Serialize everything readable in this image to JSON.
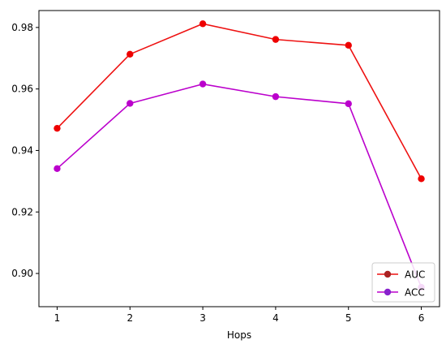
{
  "chart_data": {
    "type": "line",
    "title": "",
    "xlabel": "Hops",
    "ylabel": "",
    "x": [
      1,
      2,
      3,
      4,
      5,
      6
    ],
    "xticks": [
      "1",
      "2",
      "3",
      "4",
      "5",
      "6"
    ],
    "xlim": [
      0.75,
      6.25
    ],
    "ylim": [
      0.8892,
      0.9855
    ],
    "yticks": [
      "0.90",
      "0.92",
      "0.94",
      "0.96",
      "0.98"
    ],
    "ytick_values": [
      0.9,
      0.92,
      0.94,
      0.96,
      0.98
    ],
    "grid": false,
    "legend_position": "lower-right",
    "series": [
      {
        "name": "AUC",
        "line_color": "#ee1111",
        "marker_color": "#ee0000",
        "values": [
          0.9472,
          0.9713,
          0.9812,
          0.9761,
          0.9742,
          0.9308
        ]
      },
      {
        "name": "ACC",
        "line_color": "#bb00cc",
        "marker_color": "#bb00cc",
        "values": [
          0.9341,
          0.9553,
          0.9616,
          0.9575,
          0.9552,
          0.8955
        ]
      }
    ],
    "legend_marker_colors": [
      "#aa2222",
      "#8822cc"
    ]
  }
}
